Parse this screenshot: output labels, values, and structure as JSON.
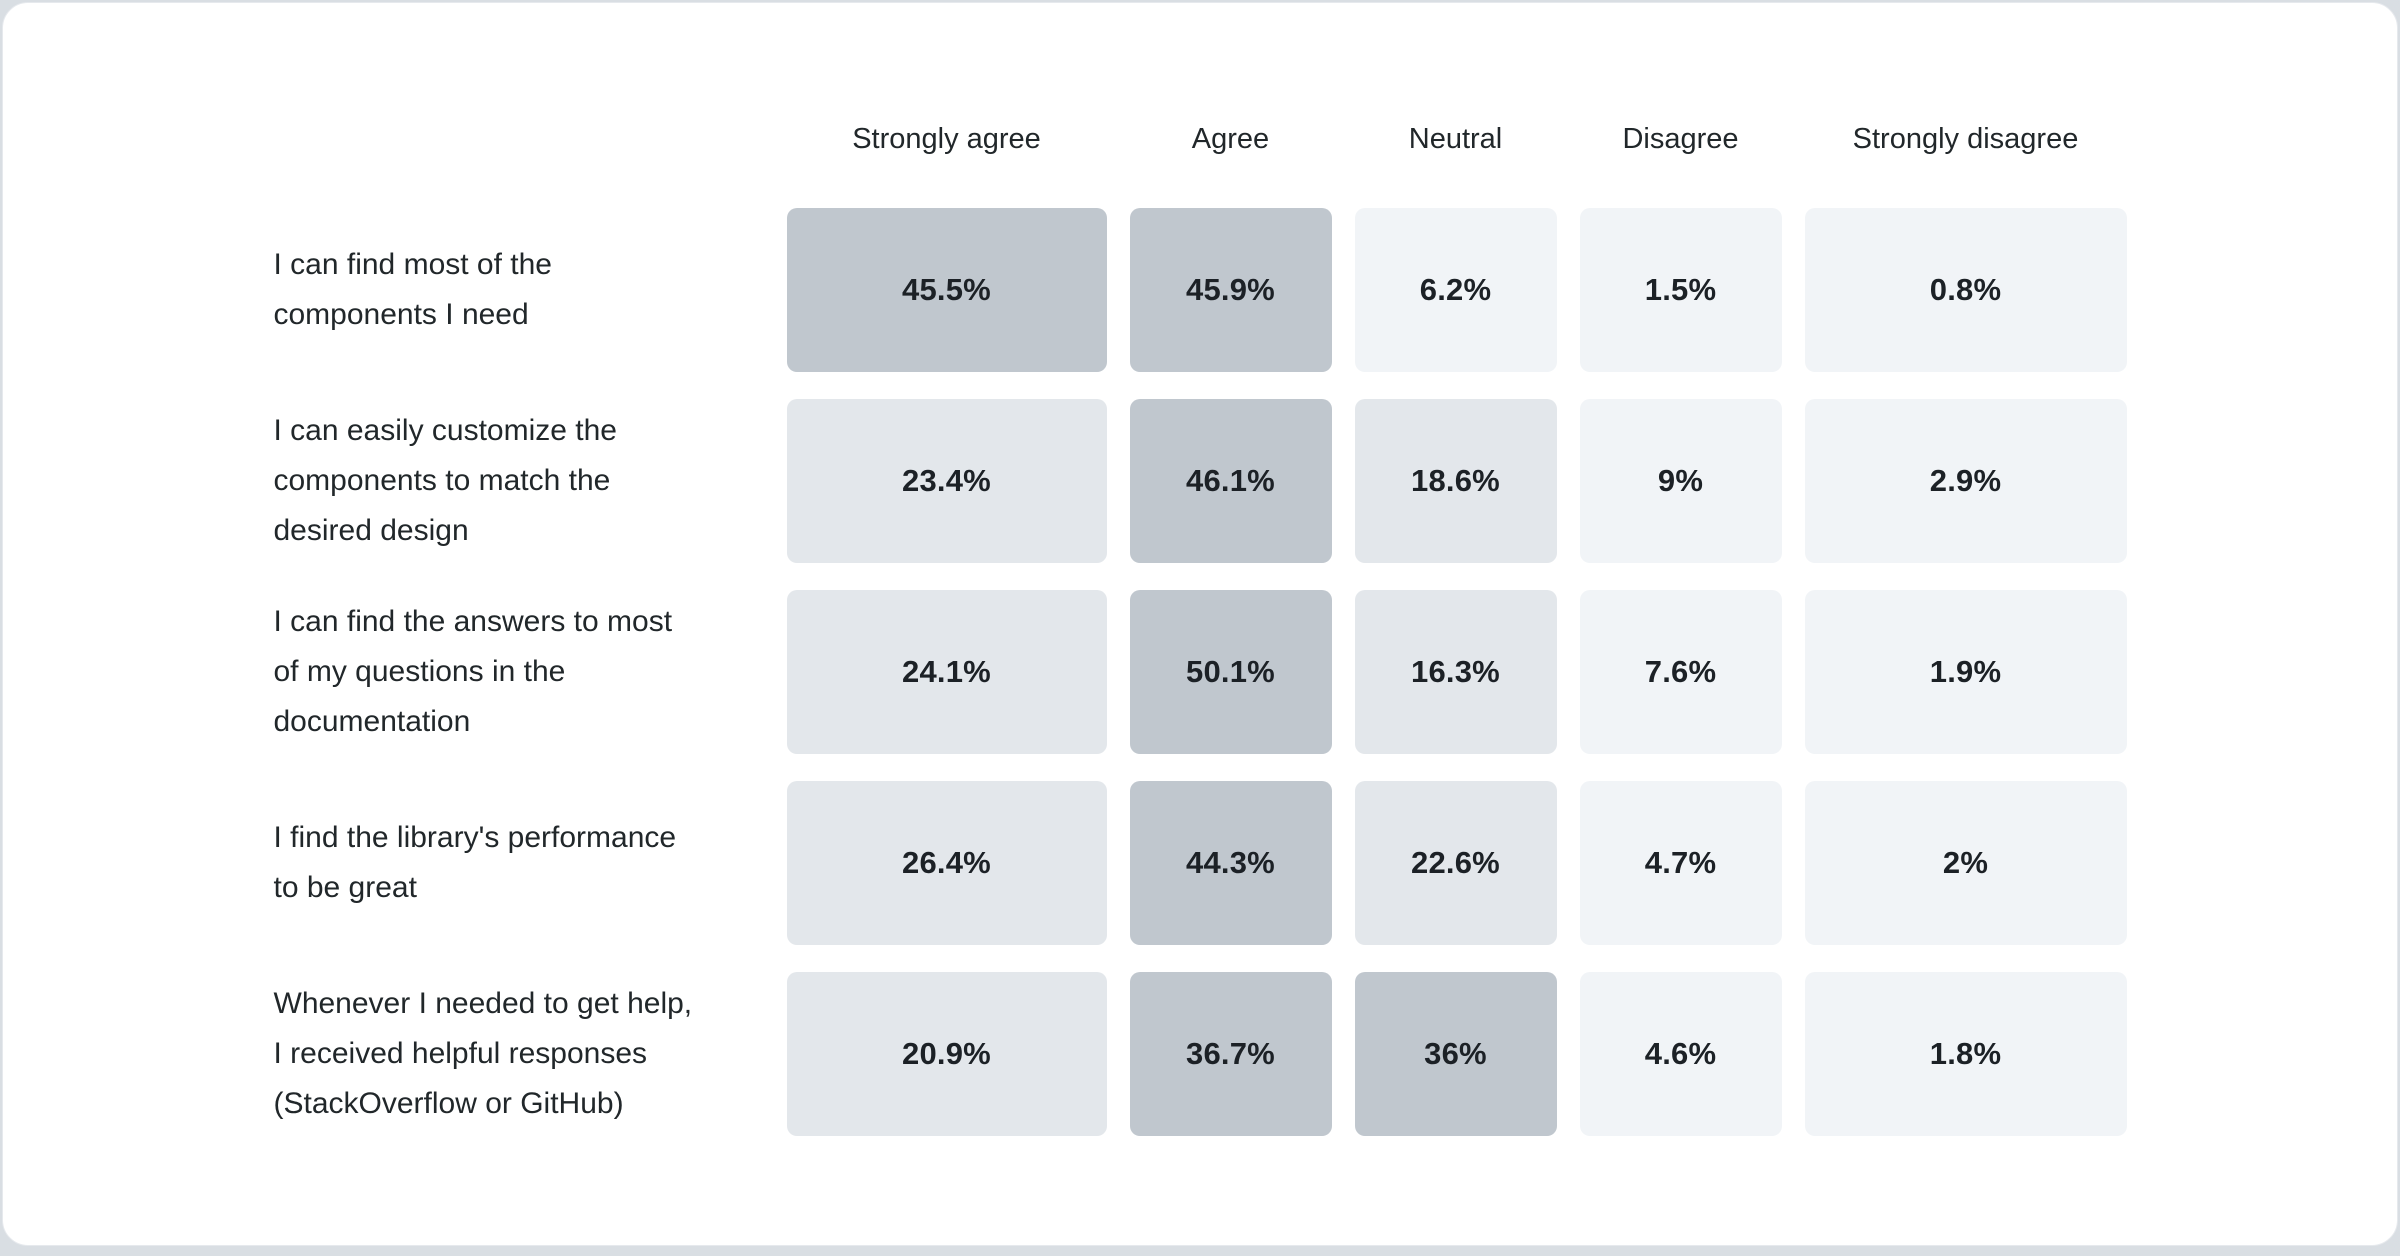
{
  "table": {
    "columns": [
      "Strongly agree",
      "Agree",
      "Neutral",
      "Disagree",
      "Strongly disagree"
    ],
    "rows": [
      {
        "label_lines": [
          "I can find most of the",
          "components I need"
        ],
        "values": [
          45.5,
          45.9,
          6.2,
          1.5,
          0.8
        ],
        "display": [
          "45.5%",
          "45.9%",
          "6.2%",
          "1.5%",
          "0.8%"
        ]
      },
      {
        "label_lines": [
          "I can easily customize the",
          "components to match the",
          "desired design"
        ],
        "values": [
          23.4,
          46.1,
          18.6,
          9,
          2.9
        ],
        "display": [
          "23.4%",
          "46.1%",
          "18.6%",
          "9%",
          "2.9%"
        ]
      },
      {
        "label_lines": [
          "I can find the answers to most",
          "of my questions in the",
          "documentation"
        ],
        "values": [
          24.1,
          50.1,
          16.3,
          7.6,
          1.9
        ],
        "display": [
          "24.1%",
          "50.1%",
          "16.3%",
          "7.6%",
          "1.9%"
        ]
      },
      {
        "label_lines": [
          "I find the library's performance",
          "to be great"
        ],
        "values": [
          26.4,
          44.3,
          22.6,
          4.7,
          2
        ],
        "display": [
          "26.4%",
          "44.3%",
          "22.6%",
          "4.7%",
          "2%"
        ]
      },
      {
        "label_lines": [
          "Whenever I needed to get help,",
          "I received helpful responses",
          "(StackOverflow or GitHub)"
        ],
        "values": [
          20.9,
          36.7,
          36,
          4.6,
          1.8
        ],
        "display": [
          "20.9%",
          "36.7%",
          "36%",
          "4.6%",
          "1.8%"
        ]
      }
    ]
  },
  "colors": {
    "card_background": "#ffffff",
    "page_background": "#d9dee3",
    "text": "#21272a",
    "value_text": "#1c2126",
    "scale": [
      {
        "min": 30,
        "color": "#c0c7ce"
      },
      {
        "min": 12,
        "color": "#e3e7eb"
      },
      {
        "min": 0,
        "color": "#f1f4f7"
      }
    ]
  },
  "chart_data": {
    "type": "heatmap",
    "title": "",
    "columns": [
      "Strongly agree",
      "Agree",
      "Neutral",
      "Disagree",
      "Strongly disagree"
    ],
    "rows": [
      "I can find most of the components I need",
      "I can easily customize the components to match the desired design",
      "I can find the answers to most of my questions in the documentation",
      "I find the library's performance to be great",
      "Whenever I needed to get help, I received helpful responses (StackOverflow or GitHub)"
    ],
    "values": [
      [
        45.5,
        45.9,
        6.2,
        1.5,
        0.8
      ],
      [
        23.4,
        46.1,
        18.6,
        9,
        2.9
      ],
      [
        24.1,
        50.1,
        16.3,
        7.6,
        1.9
      ],
      [
        26.4,
        44.3,
        22.6,
        4.7,
        2
      ],
      [
        20.9,
        36.7,
        36,
        4.6,
        1.8
      ]
    ],
    "value_unit": "%",
    "legend": "none",
    "grid": false,
    "color_low": "#f1f4f7",
    "color_mid": "#e3e7eb",
    "color_high": "#c0c7ce"
  }
}
